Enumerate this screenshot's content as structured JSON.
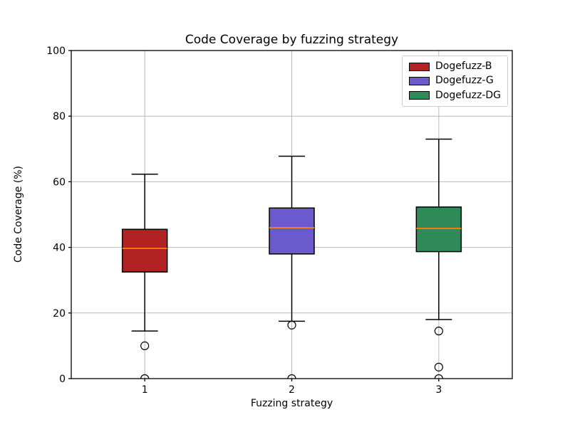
{
  "chart_data": {
    "type": "boxplot",
    "title": "Code Coverage by fuzzing strategy",
    "xlabel": "Fuzzing strategy",
    "ylabel": "Code Coverage (%)",
    "ylim": [
      0,
      100
    ],
    "xlim": [
      0.5,
      3.5
    ],
    "y_ticks": [
      0,
      20,
      40,
      60,
      80,
      100
    ],
    "x_ticks": [
      "1",
      "2",
      "3"
    ],
    "grid": "both",
    "grid_color": "#b9b9b9",
    "legend_position": "upper right",
    "median_color": "#ff7f0e",
    "box_edge_color": "#000000",
    "series": [
      {
        "name": "Dogefuzz-B",
        "color": "#b22222",
        "position": 1,
        "whisker_low": 14.5,
        "q1": 32.5,
        "median": 39.7,
        "q3": 45.5,
        "whisker_high": 62.3,
        "outliers": [
          10,
          0
        ]
      },
      {
        "name": "Dogefuzz-G",
        "color": "#6a5acd",
        "position": 2,
        "whisker_low": 17.5,
        "q1": 38.0,
        "median": 46.0,
        "q3": 52.0,
        "whisker_high": 67.8,
        "outliers": [
          16.3,
          0
        ]
      },
      {
        "name": "Dogefuzz-DG",
        "color": "#2e8b57",
        "position": 3,
        "whisker_low": 18.0,
        "q1": 38.7,
        "median": 45.8,
        "q3": 52.3,
        "whisker_high": 73.0,
        "outliers": [
          14.5,
          3.5,
          0
        ]
      }
    ]
  }
}
